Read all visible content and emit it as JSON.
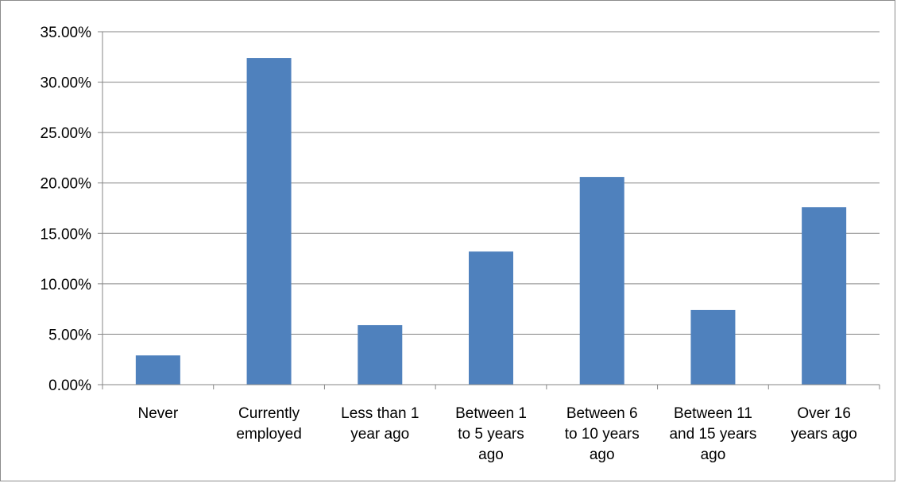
{
  "chart_data": {
    "type": "bar",
    "categories": [
      [
        "Never"
      ],
      [
        "Currently",
        "employed"
      ],
      [
        "Less than 1",
        "year ago"
      ],
      [
        "Between 1",
        "to 5 years",
        "ago"
      ],
      [
        "Between 6",
        "to 10 years",
        "ago"
      ],
      [
        "Between 11",
        "and 15 years",
        "ago"
      ],
      [
        "Over 16",
        "years ago"
      ]
    ],
    "values": [
      2.9,
      32.4,
      5.9,
      13.2,
      20.6,
      7.4,
      17.6
    ],
    "ylim": [
      0,
      35
    ],
    "yticks": [
      0,
      5,
      10,
      15,
      20,
      25,
      30,
      35
    ],
    "ytick_labels": [
      "0.00%",
      "5.00%",
      "10.00%",
      "15.00%",
      "20.00%",
      "25.00%",
      "30.00%",
      "35.00%"
    ],
    "grid": true,
    "legend": "none",
    "title": "",
    "xlabel": "",
    "ylabel": "",
    "colors": {
      "bar": "#4f81bd",
      "grid": "#868686",
      "axis": "#868686"
    }
  }
}
